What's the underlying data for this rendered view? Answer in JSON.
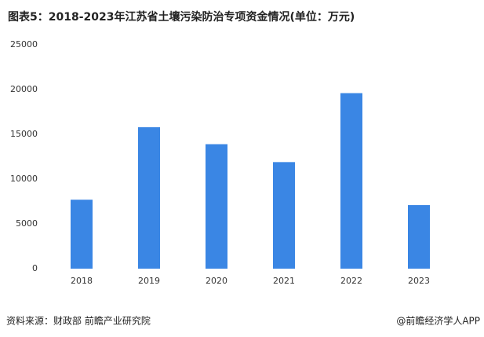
{
  "chart_data": {
    "type": "bar",
    "title": "图表5：2018-2023年江苏省土壤污染防治专项资金情况(单位：万元)",
    "categories": [
      "2018",
      "2019",
      "2020",
      "2021",
      "2022",
      "2023"
    ],
    "values": [
      7700,
      15800,
      13900,
      11900,
      19600,
      7100
    ],
    "color": "#3a86e4",
    "ylim": [
      0,
      25000
    ],
    "yticks": [
      0,
      5000,
      10000,
      15000,
      20000,
      25000
    ],
    "grid": false,
    "source": "资料来源：财政部 前瞻产业研究院",
    "credit": "@前瞻经济学人APP"
  }
}
